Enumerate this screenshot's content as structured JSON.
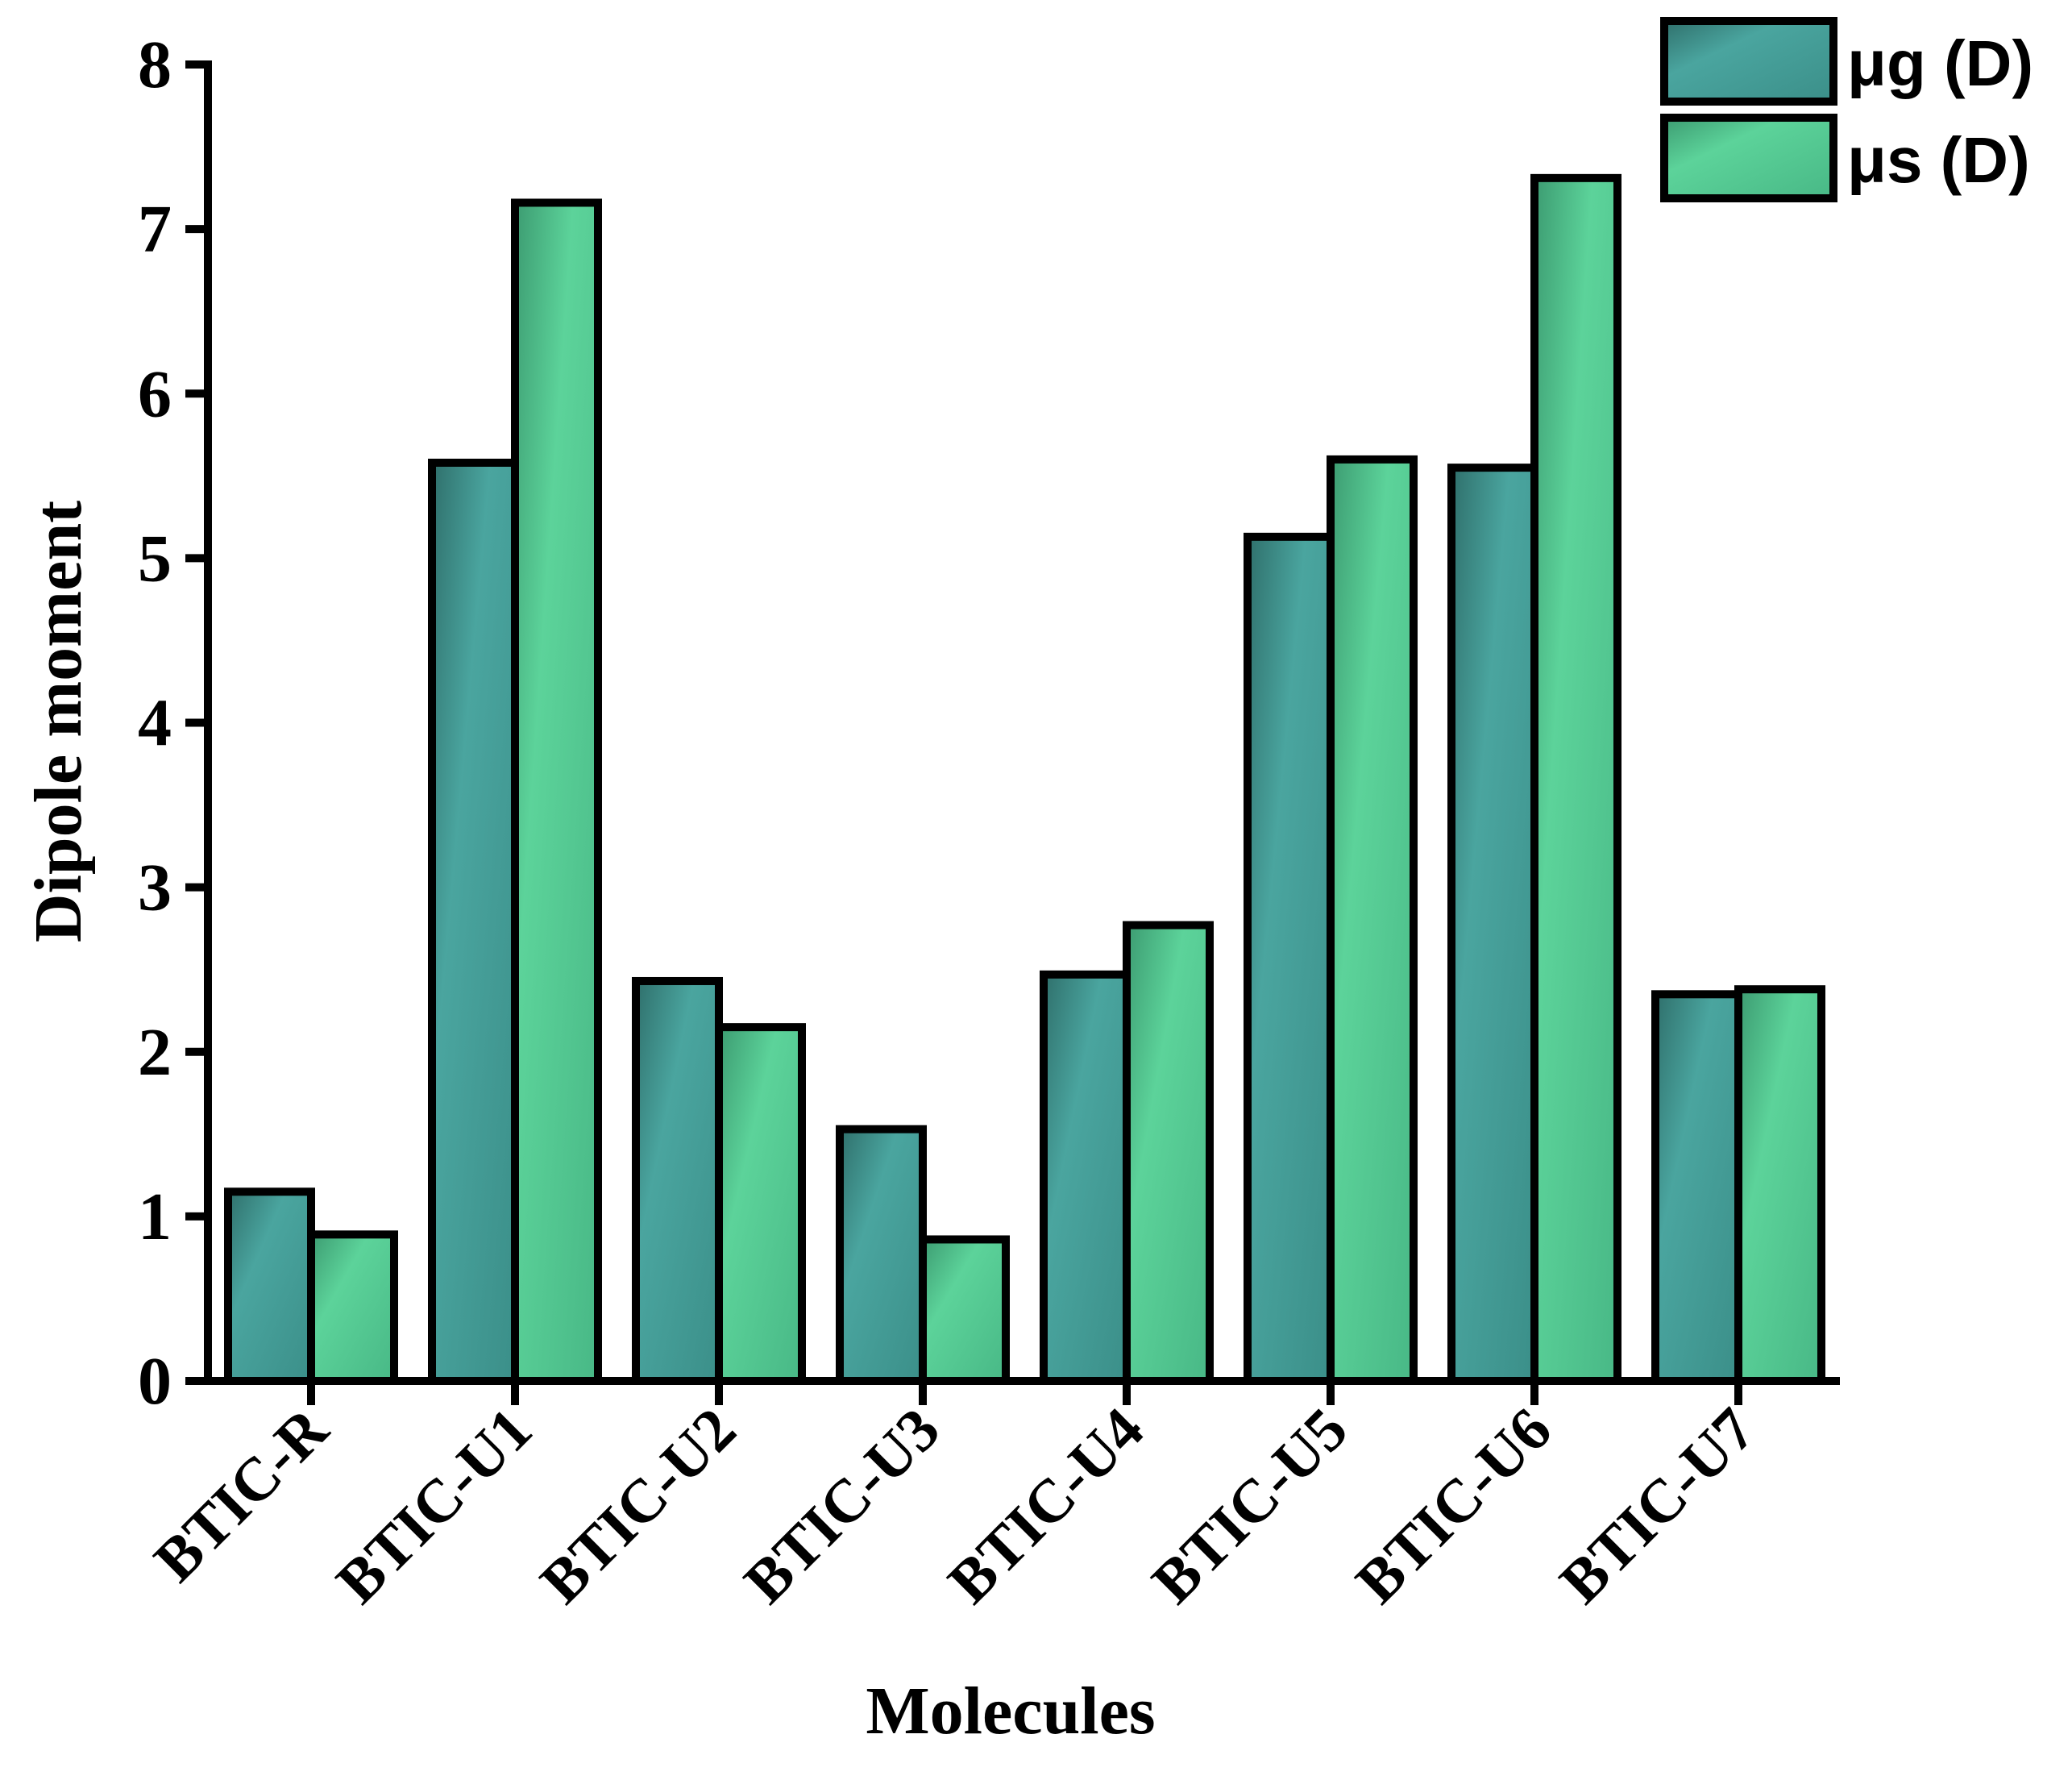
{
  "chart_data": {
    "type": "bar",
    "categories": [
      "BTIC-R",
      "BTIC-U1",
      "BTIC-U2",
      "BTIC-U3",
      "BTIC-U4",
      "BTIC-U5",
      "BTIC-U6",
      "BTIC-U7"
    ],
    "series": [
      {
        "name": "μg (D)",
        "values": [
          1.15,
          5.58,
          2.43,
          1.53,
          2.47,
          5.13,
          5.55,
          2.35
        ],
        "color": "#4aa59f"
      },
      {
        "name": "μs (D)",
        "values": [
          0.89,
          7.16,
          2.15,
          0.86,
          2.77,
          5.6,
          7.31,
          2.38
        ],
        "color": "#5cd39a"
      }
    ],
    "title": "",
    "xlabel": "Molecules",
    "ylabel": "Dipole moment",
    "ylim": [
      0,
      8
    ],
    "yticks": [
      "0",
      "1",
      "2",
      "3",
      "4",
      "5",
      "6",
      "7",
      "8"
    ],
    "grid": false,
    "legend_position": "top-right"
  }
}
